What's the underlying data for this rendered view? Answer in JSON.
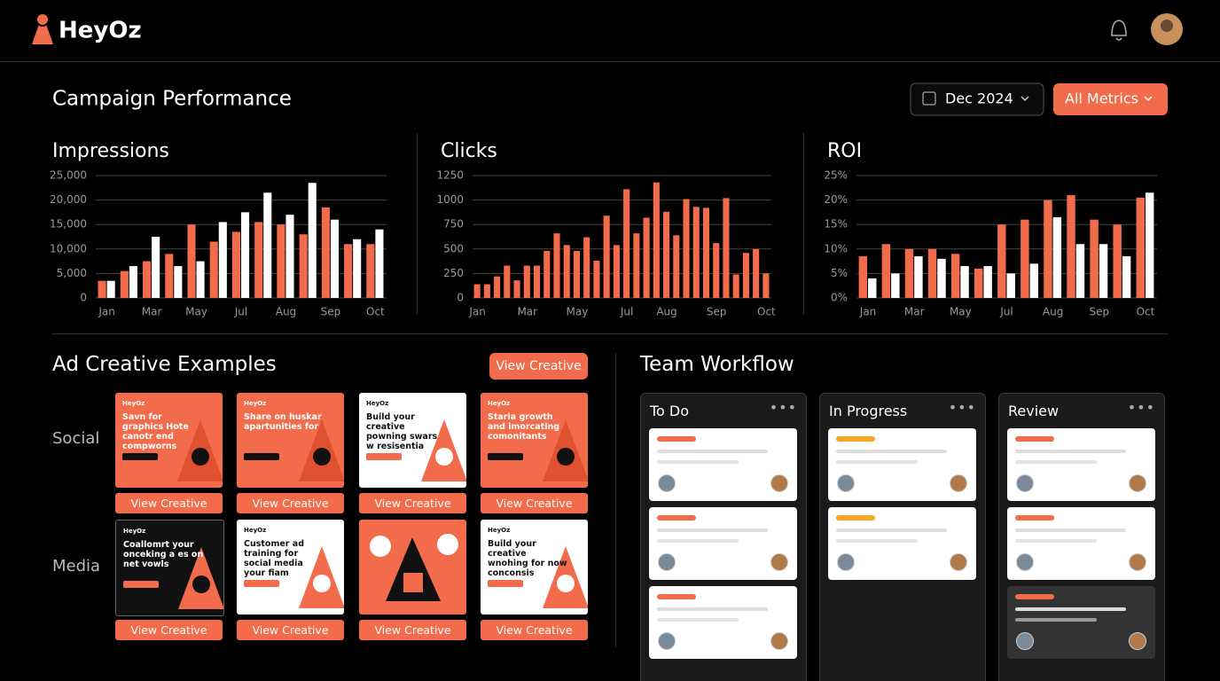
{
  "header": {
    "brand": "HeyOz"
  },
  "section": {
    "title": "Campaign Performance",
    "date_button": "Dec 2024",
    "metrics_button": "All Metrics"
  },
  "chart_data": [
    {
      "type": "bar",
      "title": "Impressions",
      "categories": [
        "Jan",
        null,
        "Mar",
        null,
        "May",
        null,
        "Jul",
        null,
        "Aug",
        null,
        "Sep",
        null,
        "Oct"
      ],
      "series": [
        {
          "color": "#f26b4a",
          "values": [
            3500,
            5500,
            7500,
            9000,
            15000,
            11500,
            13500,
            15500,
            15000,
            13000,
            18500,
            11000,
            11000
          ]
        },
        {
          "color": "#ffffff",
          "values": [
            3500,
            6500,
            12500,
            6500,
            7500,
            15500,
            17500,
            21500,
            17000,
            23500,
            16000,
            12000,
            14000
          ]
        }
      ],
      "ylim": [
        0,
        25000
      ],
      "yticks": [
        0,
        {
          "value": 5000,
          "label": "5,000"
        },
        {
          "value": 10000,
          "label": "10,000"
        },
        {
          "value": 15000,
          "label": "15,000"
        },
        {
          "value": 20000,
          "label": "20,000"
        },
        {
          "value": 25000,
          "label": "25,000"
        }
      ],
      "grid": true
    },
    {
      "type": "bar",
      "title": "Clicks",
      "categories": [
        "Jan",
        null,
        null,
        null,
        null,
        "Mar",
        null,
        null,
        null,
        null,
        "May",
        null,
        null,
        null,
        null,
        "Jul",
        null,
        null,
        null,
        "Aug",
        null,
        null,
        null,
        null,
        "Sep",
        null,
        null,
        null,
        null,
        "Oct"
      ],
      "values": [
        140,
        140,
        220,
        330,
        180,
        330,
        330,
        480,
        660,
        540,
        480,
        620,
        380,
        840,
        540,
        1110,
        660,
        820,
        1180,
        880,
        640,
        1010,
        930,
        920,
        560,
        1020,
        240,
        460,
        500,
        250
      ],
      "color": "#f26b4a",
      "ylim": [
        0,
        1250
      ],
      "yticks": [
        0,
        250,
        500,
        750,
        1000,
        1250
      ],
      "grid": true
    },
    {
      "type": "bar",
      "title": "ROI",
      "categories": [
        "Jan",
        null,
        "Mar",
        null,
        "May",
        null,
        "Jul",
        null,
        "Aug",
        null,
        "Sep",
        null,
        "Oct"
      ],
      "series": [
        {
          "color": "#f26b4a",
          "values": [
            8.5,
            11,
            10,
            10,
            9,
            6,
            15,
            16,
            20,
            21,
            16,
            15,
            20.5
          ]
        },
        {
          "color": "#ffffff",
          "values": [
            4,
            5,
            8.5,
            8,
            6.5,
            6.5,
            5,
            7,
            16.5,
            11,
            11,
            8.5,
            21.5
          ]
        }
      ],
      "ylim": [
        0,
        25
      ],
      "yticks": [
        {
          "value": 0,
          "label": "0%"
        },
        {
          "value": 5,
          "label": "5%"
        },
        {
          "value": 10,
          "label": "10%"
        },
        {
          "value": 15,
          "label": "15%"
        },
        {
          "value": 20,
          "label": "20%"
        },
        {
          "value": 25,
          "label": "25%"
        }
      ],
      "grid": true
    }
  ],
  "ad_creatives": {
    "title": "Ad Creative Examples",
    "button": "View Creative",
    "rows": [
      {
        "label": "Social",
        "cards": [
          {
            "theme": "orange",
            "brand": "HeyOz",
            "headline": "Savn for graphics Hote canotr end compworns",
            "cta": "View Creative"
          },
          {
            "theme": "orange",
            "brand": "HeyOz",
            "headline": "Share on huskar apartunities for",
            "cta": "View Creative"
          },
          {
            "theme": "white",
            "brand": "HeyOz",
            "headline": "Build your creative powning swars w resisentia",
            "cta": "View Creative"
          },
          {
            "theme": "orange",
            "brand": "HeyOz",
            "headline": "Staria growth and imorcating comonitants",
            "cta": "View Creative"
          }
        ]
      },
      {
        "label": "Media",
        "cards": [
          {
            "theme": "dark",
            "brand": "HeyOz",
            "headline": "Coallomrt your onceking a es on net vowls",
            "cta": "View Creative"
          },
          {
            "theme": "white",
            "brand": "HeyOz",
            "headline": "Customer ad training for social media your fiam",
            "cta": "View Creative"
          },
          {
            "theme": "orange",
            "cta": "View Creative"
          },
          {
            "theme": "white",
            "brand": "HeyOz",
            "headline": "Build your creative wnohing for now conconsis",
            "cta": "View Creative"
          }
        ]
      }
    ]
  },
  "workflow": {
    "title": "Team Workflow",
    "columns": [
      {
        "title": "To Do",
        "cards": [
          {
            "accent": "#f26b4a"
          },
          {
            "accent": "#f26b4a"
          },
          {
            "accent": "#f26b4a"
          }
        ]
      },
      {
        "title": "In Progress",
        "cards": [
          {
            "accent": "#f5a623"
          },
          {
            "accent": "#f5a623"
          }
        ]
      },
      {
        "title": "Review",
        "cards": [
          {
            "accent": "#f26b4a"
          },
          {
            "accent": "#f26b4a"
          },
          {
            "accent": "#f26b4a",
            "dark": true
          }
        ]
      }
    ]
  }
}
